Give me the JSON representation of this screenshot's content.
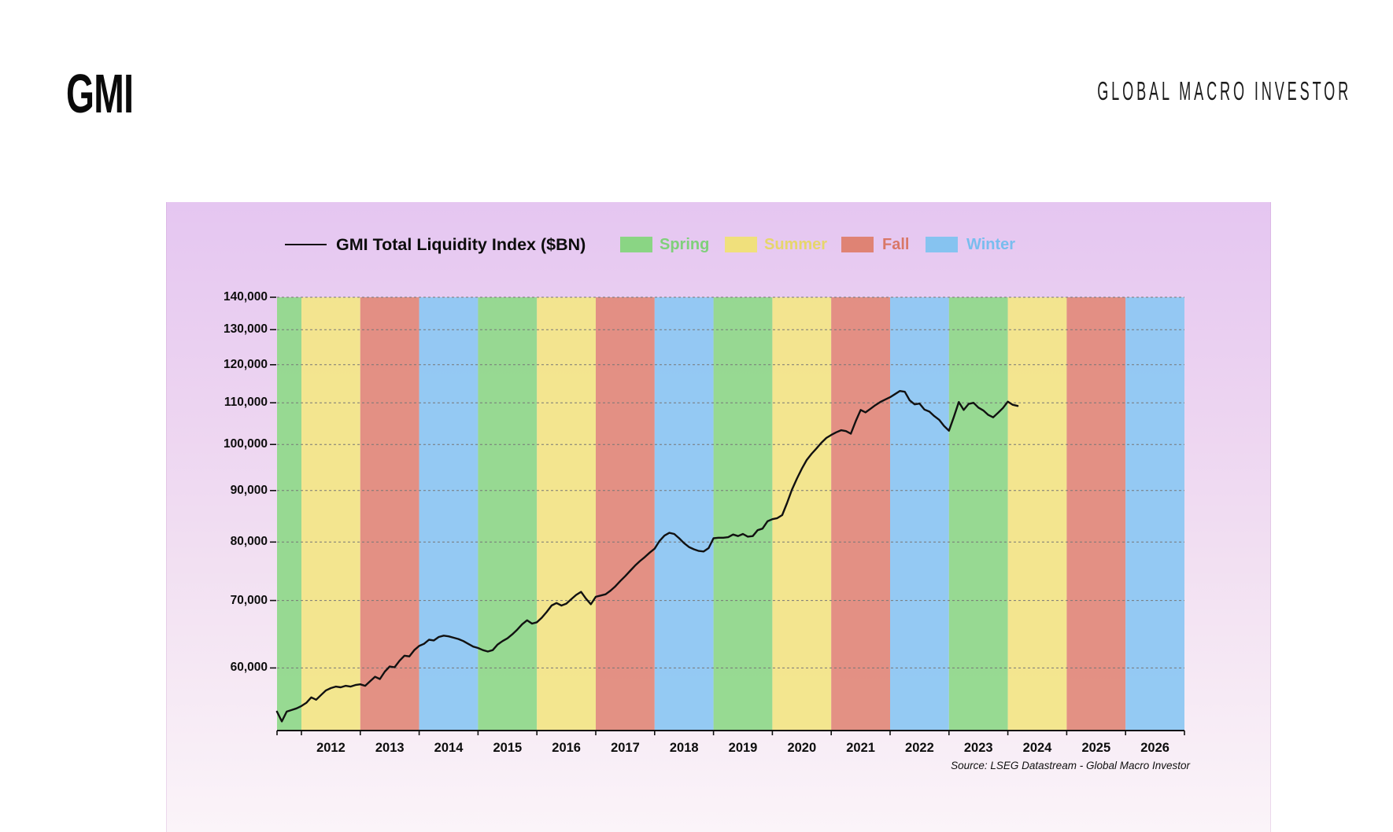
{
  "header": {
    "logo_text": "GMI",
    "brand_text": "GLOBAL MACRO INVESTOR"
  },
  "chart_data": {
    "type": "line",
    "series_label": "GMI Total Liquidity Index ($BN)",
    "line_color": "#111111",
    "source_note": "Source: LSEG Datastream - Global Macro Investor",
    "legend_position": "top",
    "seasons_legend": [
      {
        "label": "Spring",
        "swatch_color": "#8ad584",
        "text_color": "#7fd07a",
        "band_color": "#93d98e"
      },
      {
        "label": "Summer",
        "swatch_color": "#f0e07c",
        "text_color": "#e6d66b",
        "band_color": "#f2e58a"
      },
      {
        "label": "Fall",
        "swatch_color": "#df8374",
        "text_color": "#d97767",
        "band_color": "#e28d7f"
      },
      {
        "label": "Winter",
        "swatch_color": "#86c3f0",
        "text_color": "#79bdee",
        "band_color": "#90c8f2"
      }
    ],
    "x_axis": {
      "start": 2011.585,
      "end": 2027.0,
      "tick_years": [
        2012,
        2013,
        2014,
        2015,
        2016,
        2017,
        2018,
        2019,
        2020,
        2021,
        2022,
        2023,
        2024,
        2025,
        2026
      ],
      "grid": false
    },
    "y_axis": {
      "scale": "log",
      "top": 140000,
      "bottom": 52000,
      "ticks": [
        140000,
        130000,
        120000,
        110000,
        100000,
        90000,
        80000,
        70000,
        60000
      ],
      "tick_labels": [
        "140,000",
        "130,000",
        "120,000",
        "110,000",
        "100,000",
        "90,000",
        "80,000",
        "70,000",
        "60,000"
      ],
      "grid": true
    },
    "bands": [
      {
        "start": 2011.585,
        "end": 2012,
        "season": "Spring"
      },
      {
        "start": 2012,
        "end": 2013,
        "season": "Summer"
      },
      {
        "start": 2013,
        "end": 2014,
        "season": "Fall"
      },
      {
        "start": 2014,
        "end": 2015,
        "season": "Winter"
      },
      {
        "start": 2015,
        "end": 2016,
        "season": "Spring"
      },
      {
        "start": 2016,
        "end": 2017,
        "season": "Summer"
      },
      {
        "start": 2017,
        "end": 2018,
        "season": "Fall"
      },
      {
        "start": 2018,
        "end": 2019,
        "season": "Winter"
      },
      {
        "start": 2019,
        "end": 2020,
        "season": "Spring"
      },
      {
        "start": 2020,
        "end": 2021,
        "season": "Summer"
      },
      {
        "start": 2021,
        "end": 2022,
        "season": "Fall"
      },
      {
        "start": 2022,
        "end": 2023,
        "season": "Winter"
      },
      {
        "start": 2023,
        "end": 2024,
        "season": "Spring"
      },
      {
        "start": 2024,
        "end": 2025,
        "season": "Summer"
      },
      {
        "start": 2025,
        "end": 2026,
        "season": "Fall"
      },
      {
        "start": 2026,
        "end": 2027,
        "season": "Winter"
      }
    ],
    "series": [
      [
        2011.583,
        54300
      ],
      [
        2011.667,
        53100
      ],
      [
        2011.75,
        54300
      ],
      [
        2011.833,
        54500
      ],
      [
        2011.917,
        54700
      ],
      [
        2012.0,
        55000
      ],
      [
        2012.083,
        55400
      ],
      [
        2012.167,
        56100
      ],
      [
        2012.25,
        55800
      ],
      [
        2012.333,
        56400
      ],
      [
        2012.417,
        57000
      ],
      [
        2012.5,
        57300
      ],
      [
        2012.583,
        57500
      ],
      [
        2012.667,
        57400
      ],
      [
        2012.75,
        57600
      ],
      [
        2012.833,
        57500
      ],
      [
        2012.917,
        57700
      ],
      [
        2013.0,
        57800
      ],
      [
        2013.083,
        57600
      ],
      [
        2013.167,
        58200
      ],
      [
        2013.25,
        58800
      ],
      [
        2013.333,
        58500
      ],
      [
        2013.417,
        59500
      ],
      [
        2013.5,
        60200
      ],
      [
        2013.583,
        60100
      ],
      [
        2013.667,
        61000
      ],
      [
        2013.75,
        61700
      ],
      [
        2013.833,
        61600
      ],
      [
        2013.917,
        62500
      ],
      [
        2014.0,
        63100
      ],
      [
        2014.083,
        63400
      ],
      [
        2014.167,
        64000
      ],
      [
        2014.25,
        63900
      ],
      [
        2014.333,
        64400
      ],
      [
        2014.417,
        64600
      ],
      [
        2014.5,
        64500
      ],
      [
        2014.583,
        64300
      ],
      [
        2014.667,
        64100
      ],
      [
        2014.75,
        63800
      ],
      [
        2014.833,
        63400
      ],
      [
        2014.917,
        63000
      ],
      [
        2015.0,
        62800
      ],
      [
        2015.083,
        62500
      ],
      [
        2015.167,
        62300
      ],
      [
        2015.25,
        62500
      ],
      [
        2015.333,
        63300
      ],
      [
        2015.417,
        63800
      ],
      [
        2015.5,
        64200
      ],
      [
        2015.583,
        64800
      ],
      [
        2015.667,
        65500
      ],
      [
        2015.75,
        66300
      ],
      [
        2015.833,
        66900
      ],
      [
        2015.917,
        66400
      ],
      [
        2016.0,
        66600
      ],
      [
        2016.083,
        67300
      ],
      [
        2016.167,
        68200
      ],
      [
        2016.25,
        69200
      ],
      [
        2016.333,
        69600
      ],
      [
        2016.417,
        69200
      ],
      [
        2016.5,
        69500
      ],
      [
        2016.583,
        70200
      ],
      [
        2016.667,
        70900
      ],
      [
        2016.75,
        71400
      ],
      [
        2016.833,
        70300
      ],
      [
        2016.917,
        69400
      ],
      [
        2017.0,
        70600
      ],
      [
        2017.083,
        70800
      ],
      [
        2017.167,
        71000
      ],
      [
        2017.25,
        71600
      ],
      [
        2017.333,
        72300
      ],
      [
        2017.417,
        73200
      ],
      [
        2017.5,
        74000
      ],
      [
        2017.583,
        74900
      ],
      [
        2017.667,
        75800
      ],
      [
        2017.75,
        76600
      ],
      [
        2017.833,
        77300
      ],
      [
        2017.917,
        78100
      ],
      [
        2018.0,
        78800
      ],
      [
        2018.083,
        80200
      ],
      [
        2018.167,
        81200
      ],
      [
        2018.25,
        81700
      ],
      [
        2018.333,
        81500
      ],
      [
        2018.417,
        80700
      ],
      [
        2018.5,
        79800
      ],
      [
        2018.583,
        79100
      ],
      [
        2018.667,
        78700
      ],
      [
        2018.75,
        78400
      ],
      [
        2018.833,
        78300
      ],
      [
        2018.917,
        78900
      ],
      [
        2019.0,
        80700
      ],
      [
        2019.083,
        80800
      ],
      [
        2019.167,
        80800
      ],
      [
        2019.25,
        80900
      ],
      [
        2019.333,
        81400
      ],
      [
        2019.417,
        81100
      ],
      [
        2019.5,
        81500
      ],
      [
        2019.583,
        81000
      ],
      [
        2019.667,
        81100
      ],
      [
        2019.75,
        82200
      ],
      [
        2019.833,
        82500
      ],
      [
        2019.917,
        83900
      ],
      [
        2020.0,
        84300
      ],
      [
        2020.083,
        84500
      ],
      [
        2020.167,
        85100
      ],
      [
        2020.25,
        87500
      ],
      [
        2020.333,
        90200
      ],
      [
        2020.417,
        92500
      ],
      [
        2020.5,
        94600
      ],
      [
        2020.583,
        96500
      ],
      [
        2020.667,
        97900
      ],
      [
        2020.75,
        99100
      ],
      [
        2020.833,
        100400
      ],
      [
        2020.917,
        101500
      ],
      [
        2021.0,
        102200
      ],
      [
        2021.083,
        102800
      ],
      [
        2021.167,
        103300
      ],
      [
        2021.25,
        103100
      ],
      [
        2021.333,
        102500
      ],
      [
        2021.417,
        105500
      ],
      [
        2021.5,
        108200
      ],
      [
        2021.583,
        107600
      ],
      [
        2021.667,
        108500
      ],
      [
        2021.75,
        109400
      ],
      [
        2021.833,
        110200
      ],
      [
        2021.917,
        110800
      ],
      [
        2022.0,
        111400
      ],
      [
        2022.083,
        112200
      ],
      [
        2022.167,
        113000
      ],
      [
        2022.25,
        112800
      ],
      [
        2022.333,
        110600
      ],
      [
        2022.417,
        109600
      ],
      [
        2022.5,
        109800
      ],
      [
        2022.583,
        108300
      ],
      [
        2022.667,
        107800
      ],
      [
        2022.75,
        106700
      ],
      [
        2022.833,
        105800
      ],
      [
        2022.917,
        104300
      ],
      [
        2023.0,
        103200
      ],
      [
        2023.083,
        106500
      ],
      [
        2023.167,
        110200
      ],
      [
        2023.25,
        108200
      ],
      [
        2023.333,
        109700
      ],
      [
        2023.417,
        110000
      ],
      [
        2023.5,
        108800
      ],
      [
        2023.583,
        108100
      ],
      [
        2023.667,
        107000
      ],
      [
        2023.75,
        106400
      ],
      [
        2023.833,
        107500
      ],
      [
        2023.917,
        108700
      ],
      [
        2024.0,
        110300
      ],
      [
        2024.083,
        109500
      ],
      [
        2024.167,
        109200
      ]
    ]
  }
}
